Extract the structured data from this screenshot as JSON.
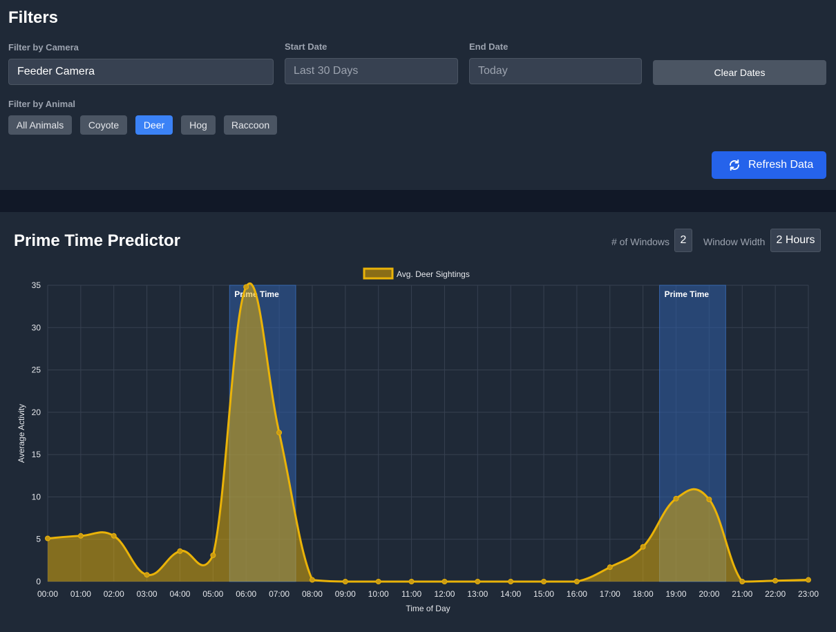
{
  "filters": {
    "title": "Filters",
    "camera_label": "Filter by Camera",
    "camera_value": "Feeder Camera",
    "start_label": "Start Date",
    "start_placeholder": "Last 30 Days",
    "end_label": "End Date",
    "end_placeholder": "Today",
    "clear_label": "Clear Dates",
    "animal_label": "Filter by Animal",
    "animals": [
      "All Animals",
      "Coyote",
      "Deer",
      "Hog",
      "Raccoon"
    ],
    "active_animal": "Deer",
    "refresh_label": "Refresh Data",
    "refresh_icon": "refresh-icon"
  },
  "predictor": {
    "title": "Prime Time Predictor",
    "windows_label": "# of Windows",
    "windows_value": "2",
    "width_label": "Window Width",
    "width_value": "2 Hours"
  },
  "colors": {
    "accent": "#3b82f6",
    "line": "#eab308",
    "prime_band": "#2f5ea8"
  },
  "chart_data": {
    "type": "line",
    "area_fill": true,
    "legend": "Avg. Deer Sightings",
    "legend_position": "top-center",
    "xlabel": "Time of Day",
    "ylabel": "Average Activity",
    "ylim": [
      0,
      35
    ],
    "yticks": [
      0,
      5,
      10,
      15,
      20,
      25,
      30,
      35
    ],
    "grid": true,
    "categories": [
      "00:00",
      "01:00",
      "02:00",
      "03:00",
      "04:00",
      "05:00",
      "06:00",
      "07:00",
      "08:00",
      "09:00",
      "10:00",
      "11:00",
      "12:00",
      "13:00",
      "14:00",
      "15:00",
      "16:00",
      "17:00",
      "18:00",
      "19:00",
      "20:00",
      "21:00",
      "22:00",
      "23:00"
    ],
    "series": [
      {
        "name": "Avg. Deer Sightings",
        "values": [
          5.1,
          5.4,
          5.4,
          0.8,
          3.6,
          3.1,
          34.8,
          17.6,
          0.2,
          0,
          0,
          0,
          0,
          0,
          0,
          0,
          0,
          1.7,
          4.1,
          9.8,
          9.7,
          0,
          0.1,
          0.2
        ]
      }
    ],
    "prime_windows": [
      {
        "label": "Prime Time",
        "start": "05:30",
        "end": "07:30"
      },
      {
        "label": "Prime Time",
        "start": "18:30",
        "end": "20:30"
      }
    ]
  }
}
